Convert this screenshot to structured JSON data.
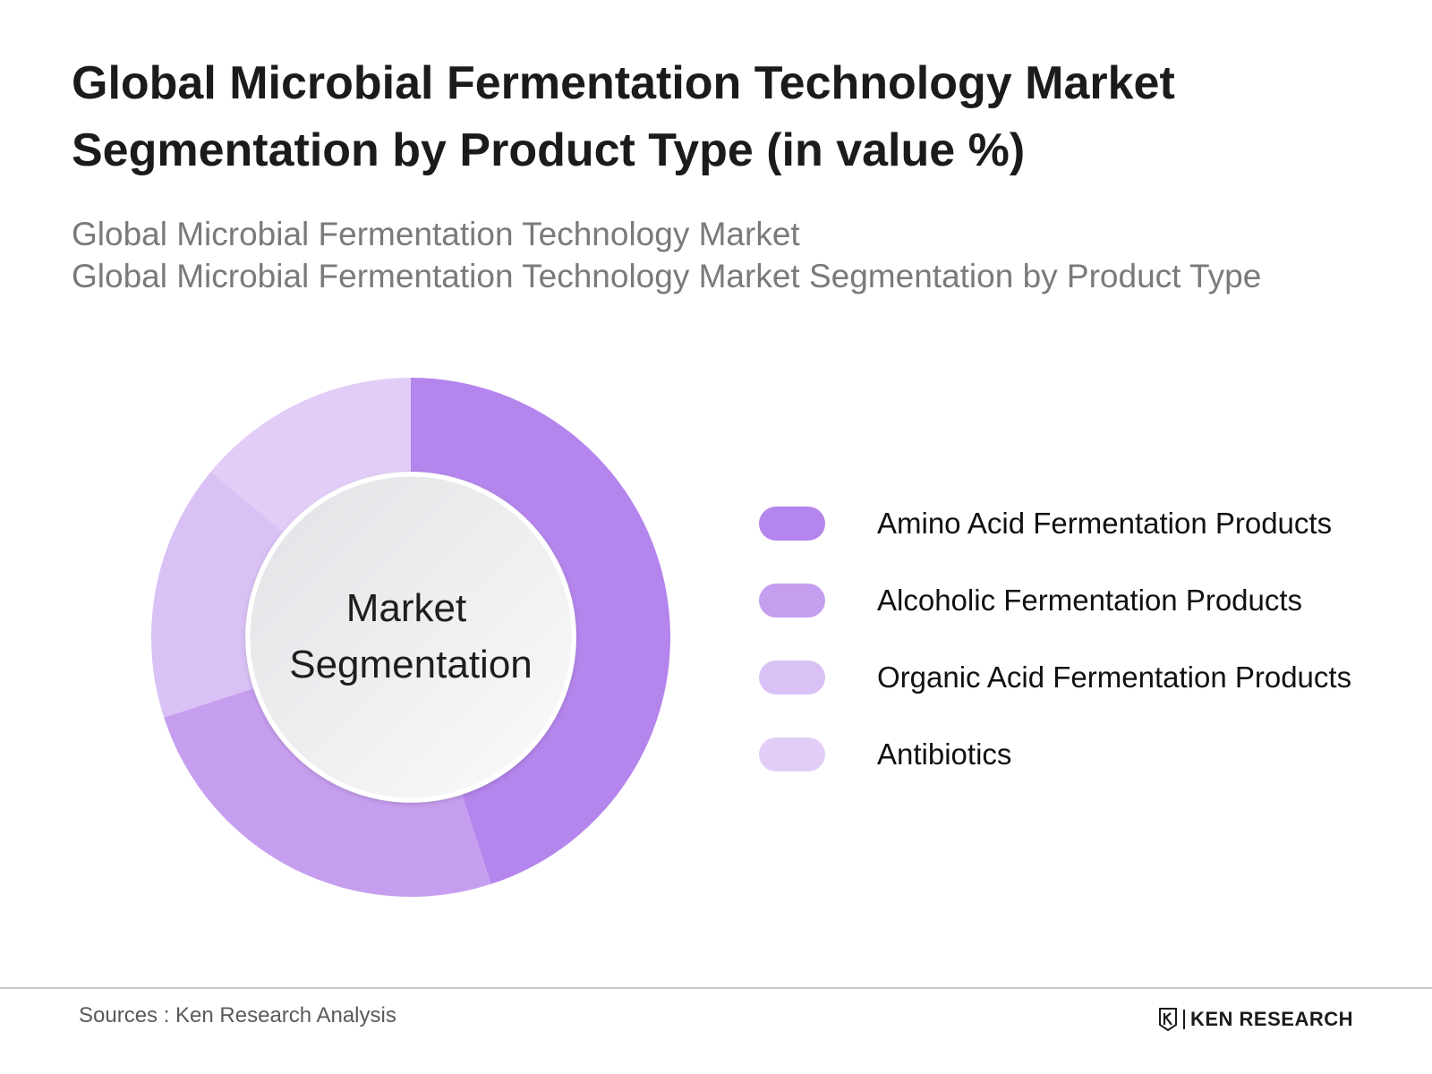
{
  "title": "Global Microbial Fermentation Technology Market Segmentation by Product Type (in value %)",
  "subtitle_lines": [
    "Global Microbial Fermentation Technology Market",
    "Global Microbial Fermentation Technology Market Segmentation by Product Type"
  ],
  "center_label": [
    "Market",
    "Segmentation"
  ],
  "source": "Sources : Ken Research Analysis",
  "brand": "KEN RESEARCH",
  "chart_data": {
    "type": "pie",
    "donut": true,
    "title": "Global Microbial Fermentation Technology Market Segmentation by Product Type (in value %)",
    "categories": [
      "Amino Acid Fermentation Products",
      "Alcoholic Fermentation Products",
      "Organic Acid Fermentation Products",
      "Antibiotics"
    ],
    "values": [
      45,
      25,
      16,
      14
    ],
    "colors": [
      "#b485ec",
      "#c69ef0",
      "#d9c0f5",
      "#e2cdf7"
    ],
    "legend_position": "right",
    "start": "top",
    "direction": "clockwise"
  }
}
